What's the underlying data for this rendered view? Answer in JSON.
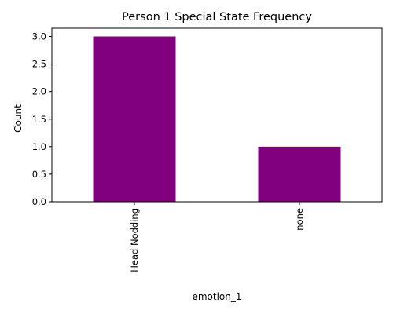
{
  "chart_data": {
    "type": "bar",
    "title": "Person 1 Special State Frequency",
    "xlabel": "emotion_1",
    "ylabel": "Count",
    "categories": [
      "Head Nodding",
      "none"
    ],
    "values": [
      3,
      1
    ],
    "ylim": [
      0,
      3.15
    ],
    "yticks": [
      "0.0",
      "0.5",
      "1.0",
      "1.5",
      "2.0",
      "2.5",
      "3.0"
    ],
    "bar_color": "#800080",
    "grid": false,
    "legend": "none"
  }
}
